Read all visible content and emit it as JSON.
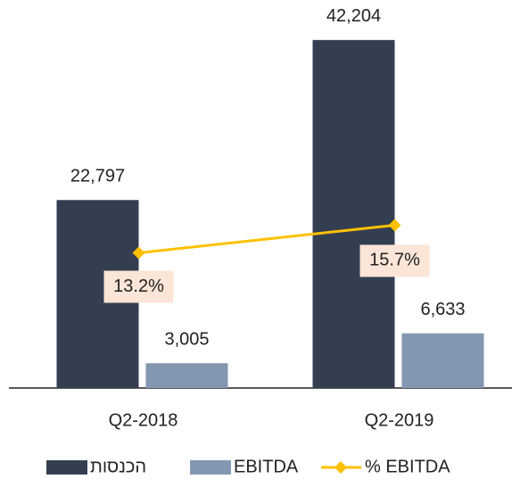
{
  "chart_data": {
    "type": "bar",
    "categories": [
      "Q2-2018",
      "Q2-2019"
    ],
    "series": [
      {
        "name": "הכנסות",
        "color": "#333f50",
        "values": [
          22797,
          42204
        ],
        "value_labels": [
          "22,797",
          "42,204"
        ]
      },
      {
        "name": "EBITDA",
        "color": "#8497b0",
        "values": [
          3005,
          6633
        ],
        "value_labels": [
          "3,005",
          "6,633"
        ]
      },
      {
        "name": "% EBITDA",
        "type": "line",
        "axis": "y2",
        "color": "#ffc000",
        "values": [
          13.2,
          15.7
        ],
        "value_labels": [
          "13.2%",
          "15.7%"
        ]
      }
    ],
    "ylim": [
      0,
      45000
    ],
    "y2lim": [
      1,
      34.5
    ],
    "grid": false,
    "legend": "bottom"
  }
}
